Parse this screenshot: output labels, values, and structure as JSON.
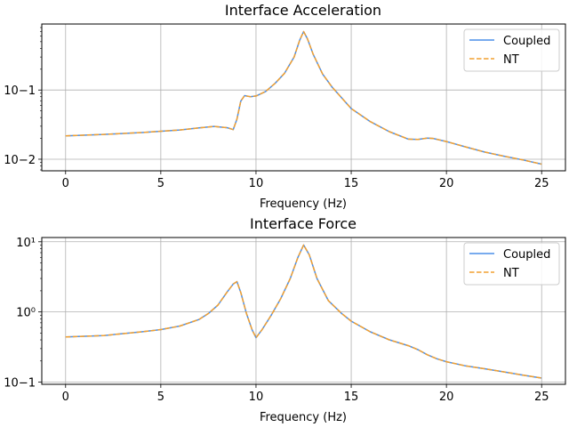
{
  "chart_data": [
    {
      "type": "line",
      "title": "Interface Acceleration",
      "xlabel": "Frequency (Hz)",
      "ylabel": "",
      "xlim": [
        -1.25,
        26.25
      ],
      "ylim": [
        0.0068,
        0.9
      ],
      "yscale": "log",
      "xticks": [
        0,
        5,
        10,
        15,
        20,
        25
      ],
      "xtick_labels": [
        "0",
        "5",
        "10",
        "15",
        "20",
        "25"
      ],
      "yticks": [
        0.01,
        0.1
      ],
      "ytick_labels": [
        "10−2",
        "10−1"
      ],
      "grid": true,
      "legend_position": "upper right",
      "x": [
        0,
        2,
        4,
        6,
        7,
        7.8,
        8.5,
        8.8,
        9.0,
        9.2,
        9.4,
        9.7,
        10,
        10.5,
        11,
        11.5,
        12,
        12.3,
        12.5,
        12.7,
        13,
        13.5,
        14,
        15,
        16,
        17,
        18,
        18.5,
        19,
        19.3,
        20,
        21,
        22,
        23,
        24,
        25
      ],
      "series": [
        {
          "name": "Coupled",
          "color": "#4c8fe8",
          "dash": "solid",
          "values": [
            0.0218,
            0.0228,
            0.0243,
            0.0265,
            0.0283,
            0.0298,
            0.0285,
            0.0268,
            0.038,
            0.069,
            0.083,
            0.08,
            0.082,
            0.095,
            0.125,
            0.175,
            0.3,
            0.53,
            0.7,
            0.55,
            0.33,
            0.17,
            0.11,
            0.054,
            0.035,
            0.025,
            0.0195,
            0.0193,
            0.0202,
            0.02,
            0.018,
            0.0151,
            0.0127,
            0.0111,
            0.0098,
            0.0085
          ]
        },
        {
          "name": "NT",
          "color": "#f2a030",
          "dash": "dashed",
          "values": [
            0.0218,
            0.0228,
            0.0243,
            0.0265,
            0.0283,
            0.0298,
            0.0285,
            0.0268,
            0.038,
            0.069,
            0.083,
            0.08,
            0.082,
            0.095,
            0.125,
            0.175,
            0.3,
            0.53,
            0.7,
            0.55,
            0.33,
            0.17,
            0.11,
            0.054,
            0.035,
            0.025,
            0.0195,
            0.0193,
            0.0202,
            0.02,
            0.018,
            0.0151,
            0.0127,
            0.0111,
            0.0098,
            0.0085
          ]
        }
      ]
    },
    {
      "type": "line",
      "title": "Interface Force",
      "xlabel": "Frequency (Hz)",
      "ylabel": "",
      "xlim": [
        -1.25,
        26.25
      ],
      "ylim": [
        0.093,
        11.5
      ],
      "yscale": "log",
      "xticks": [
        0,
        5,
        10,
        15,
        20,
        25
      ],
      "xtick_labels": [
        "0",
        "5",
        "10",
        "15",
        "20",
        "25"
      ],
      "yticks": [
        0.1,
        1,
        10
      ],
      "ytick_labels": [
        "10−1",
        "10⁰",
        "10¹"
      ],
      "grid": true,
      "legend_position": "upper right",
      "x": [
        0,
        2,
        4,
        5,
        6,
        7,
        7.5,
        8,
        8.5,
        8.8,
        9.0,
        9.2,
        9.5,
        9.8,
        10,
        10.3,
        10.8,
        11.3,
        11.8,
        12.2,
        12.5,
        12.8,
        13.2,
        13.8,
        14.5,
        15,
        16,
        17,
        18,
        18.5,
        19,
        19.5,
        20,
        21,
        22,
        23,
        24,
        25
      ],
      "series": [
        {
          "name": "Coupled",
          "color": "#4c8fe8",
          "dash": "solid",
          "values": [
            0.44,
            0.46,
            0.52,
            0.56,
            0.63,
            0.78,
            0.95,
            1.25,
            1.95,
            2.5,
            2.7,
            1.9,
            0.95,
            0.55,
            0.43,
            0.55,
            0.9,
            1.55,
            3.0,
            6.0,
            9.0,
            6.5,
            3.0,
            1.45,
            0.95,
            0.74,
            0.52,
            0.4,
            0.33,
            0.29,
            0.245,
            0.215,
            0.195,
            0.17,
            0.155,
            0.14,
            0.126,
            0.114
          ]
        },
        {
          "name": "NT",
          "color": "#f2a030",
          "dash": "dashed",
          "values": [
            0.44,
            0.46,
            0.52,
            0.56,
            0.63,
            0.78,
            0.95,
            1.25,
            1.95,
            2.5,
            2.7,
            1.9,
            0.95,
            0.55,
            0.43,
            0.55,
            0.9,
            1.55,
            3.0,
            6.0,
            9.0,
            6.5,
            3.0,
            1.45,
            0.95,
            0.74,
            0.52,
            0.4,
            0.33,
            0.29,
            0.245,
            0.215,
            0.195,
            0.17,
            0.155,
            0.14,
            0.126,
            0.114
          ]
        }
      ]
    }
  ]
}
